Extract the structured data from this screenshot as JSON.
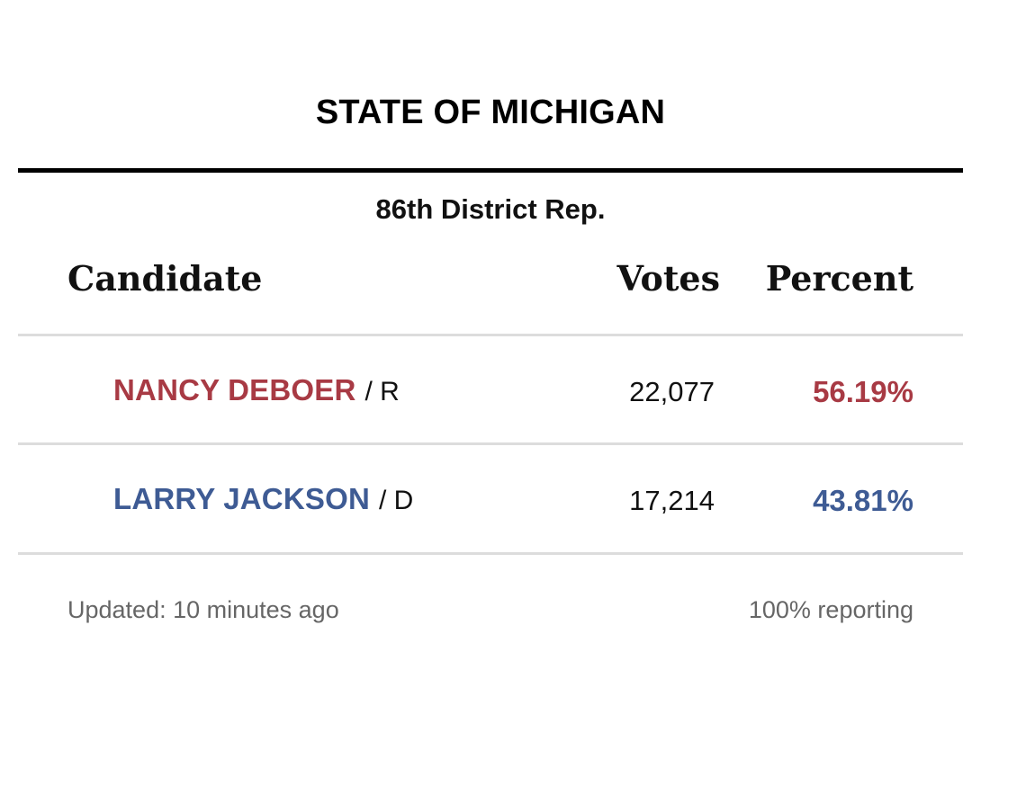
{
  "header": {
    "state_title": "STATE OF MICHIGAN",
    "race_name": "86th District Rep."
  },
  "table": {
    "columns": {
      "candidate": "Candidate",
      "votes": "Votes",
      "percent": "Percent"
    },
    "rows": [
      {
        "name": "NANCY DEBOER",
        "party": "/ R",
        "votes": "22,077",
        "percent": "56.19%",
        "color": "#a83a44"
      },
      {
        "name": "LARRY JACKSON",
        "party": "/ D",
        "votes": "17,214",
        "percent": "43.81%",
        "color": "#3e5b94"
      }
    ]
  },
  "footer": {
    "updated": "Updated: 10 minutes ago",
    "reporting": "100% reporting"
  },
  "colors": {
    "republican": "#a83a44",
    "democrat": "#3e5b94",
    "rule_heavy": "#000000",
    "rule_light": "#dcdcdc",
    "footer_text": "#666666"
  }
}
